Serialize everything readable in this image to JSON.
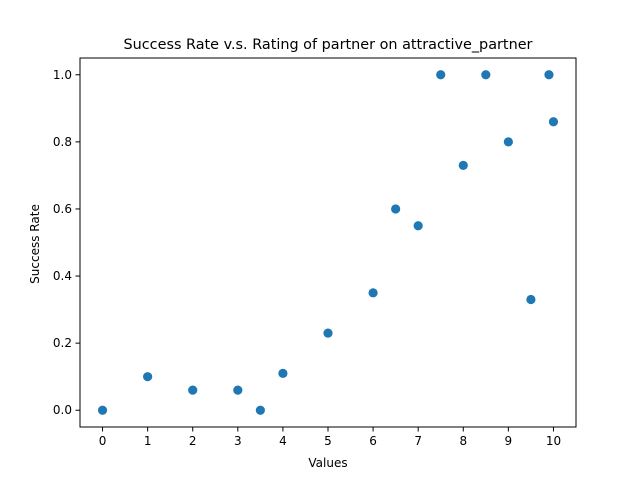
{
  "chart_data": {
    "type": "scatter",
    "title": "Success Rate v.s. Rating of partner on attractive_partner",
    "xlabel": "Values",
    "ylabel": "Success Rate",
    "xlim": [
      -0.5,
      10.5
    ],
    "ylim": [
      -0.05,
      1.05
    ],
    "xticks": [
      0,
      1,
      2,
      3,
      4,
      5,
      6,
      7,
      8,
      9,
      10
    ],
    "yticks": [
      0.0,
      0.2,
      0.4,
      0.6,
      0.8,
      1.0
    ],
    "ytick_labels": [
      "0.0",
      "0.2",
      "0.4",
      "0.6",
      "0.8",
      "1.0"
    ],
    "grid": false,
    "marker_color": "#1f77b4",
    "points": [
      {
        "x": 0,
        "y": 0.0
      },
      {
        "x": 1,
        "y": 0.1
      },
      {
        "x": 2,
        "y": 0.06
      },
      {
        "x": 3,
        "y": 0.06
      },
      {
        "x": 3.5,
        "y": 0.0
      },
      {
        "x": 4,
        "y": 0.11
      },
      {
        "x": 5,
        "y": 0.23
      },
      {
        "x": 6,
        "y": 0.35
      },
      {
        "x": 6.5,
        "y": 0.6
      },
      {
        "x": 7,
        "y": 0.55
      },
      {
        "x": 7.5,
        "y": 1.0
      },
      {
        "x": 8,
        "y": 0.73
      },
      {
        "x": 8.5,
        "y": 1.0
      },
      {
        "x": 9,
        "y": 0.8
      },
      {
        "x": 9.5,
        "y": 0.33
      },
      {
        "x": 9.9,
        "y": 1.0
      },
      {
        "x": 10,
        "y": 0.86
      }
    ]
  }
}
